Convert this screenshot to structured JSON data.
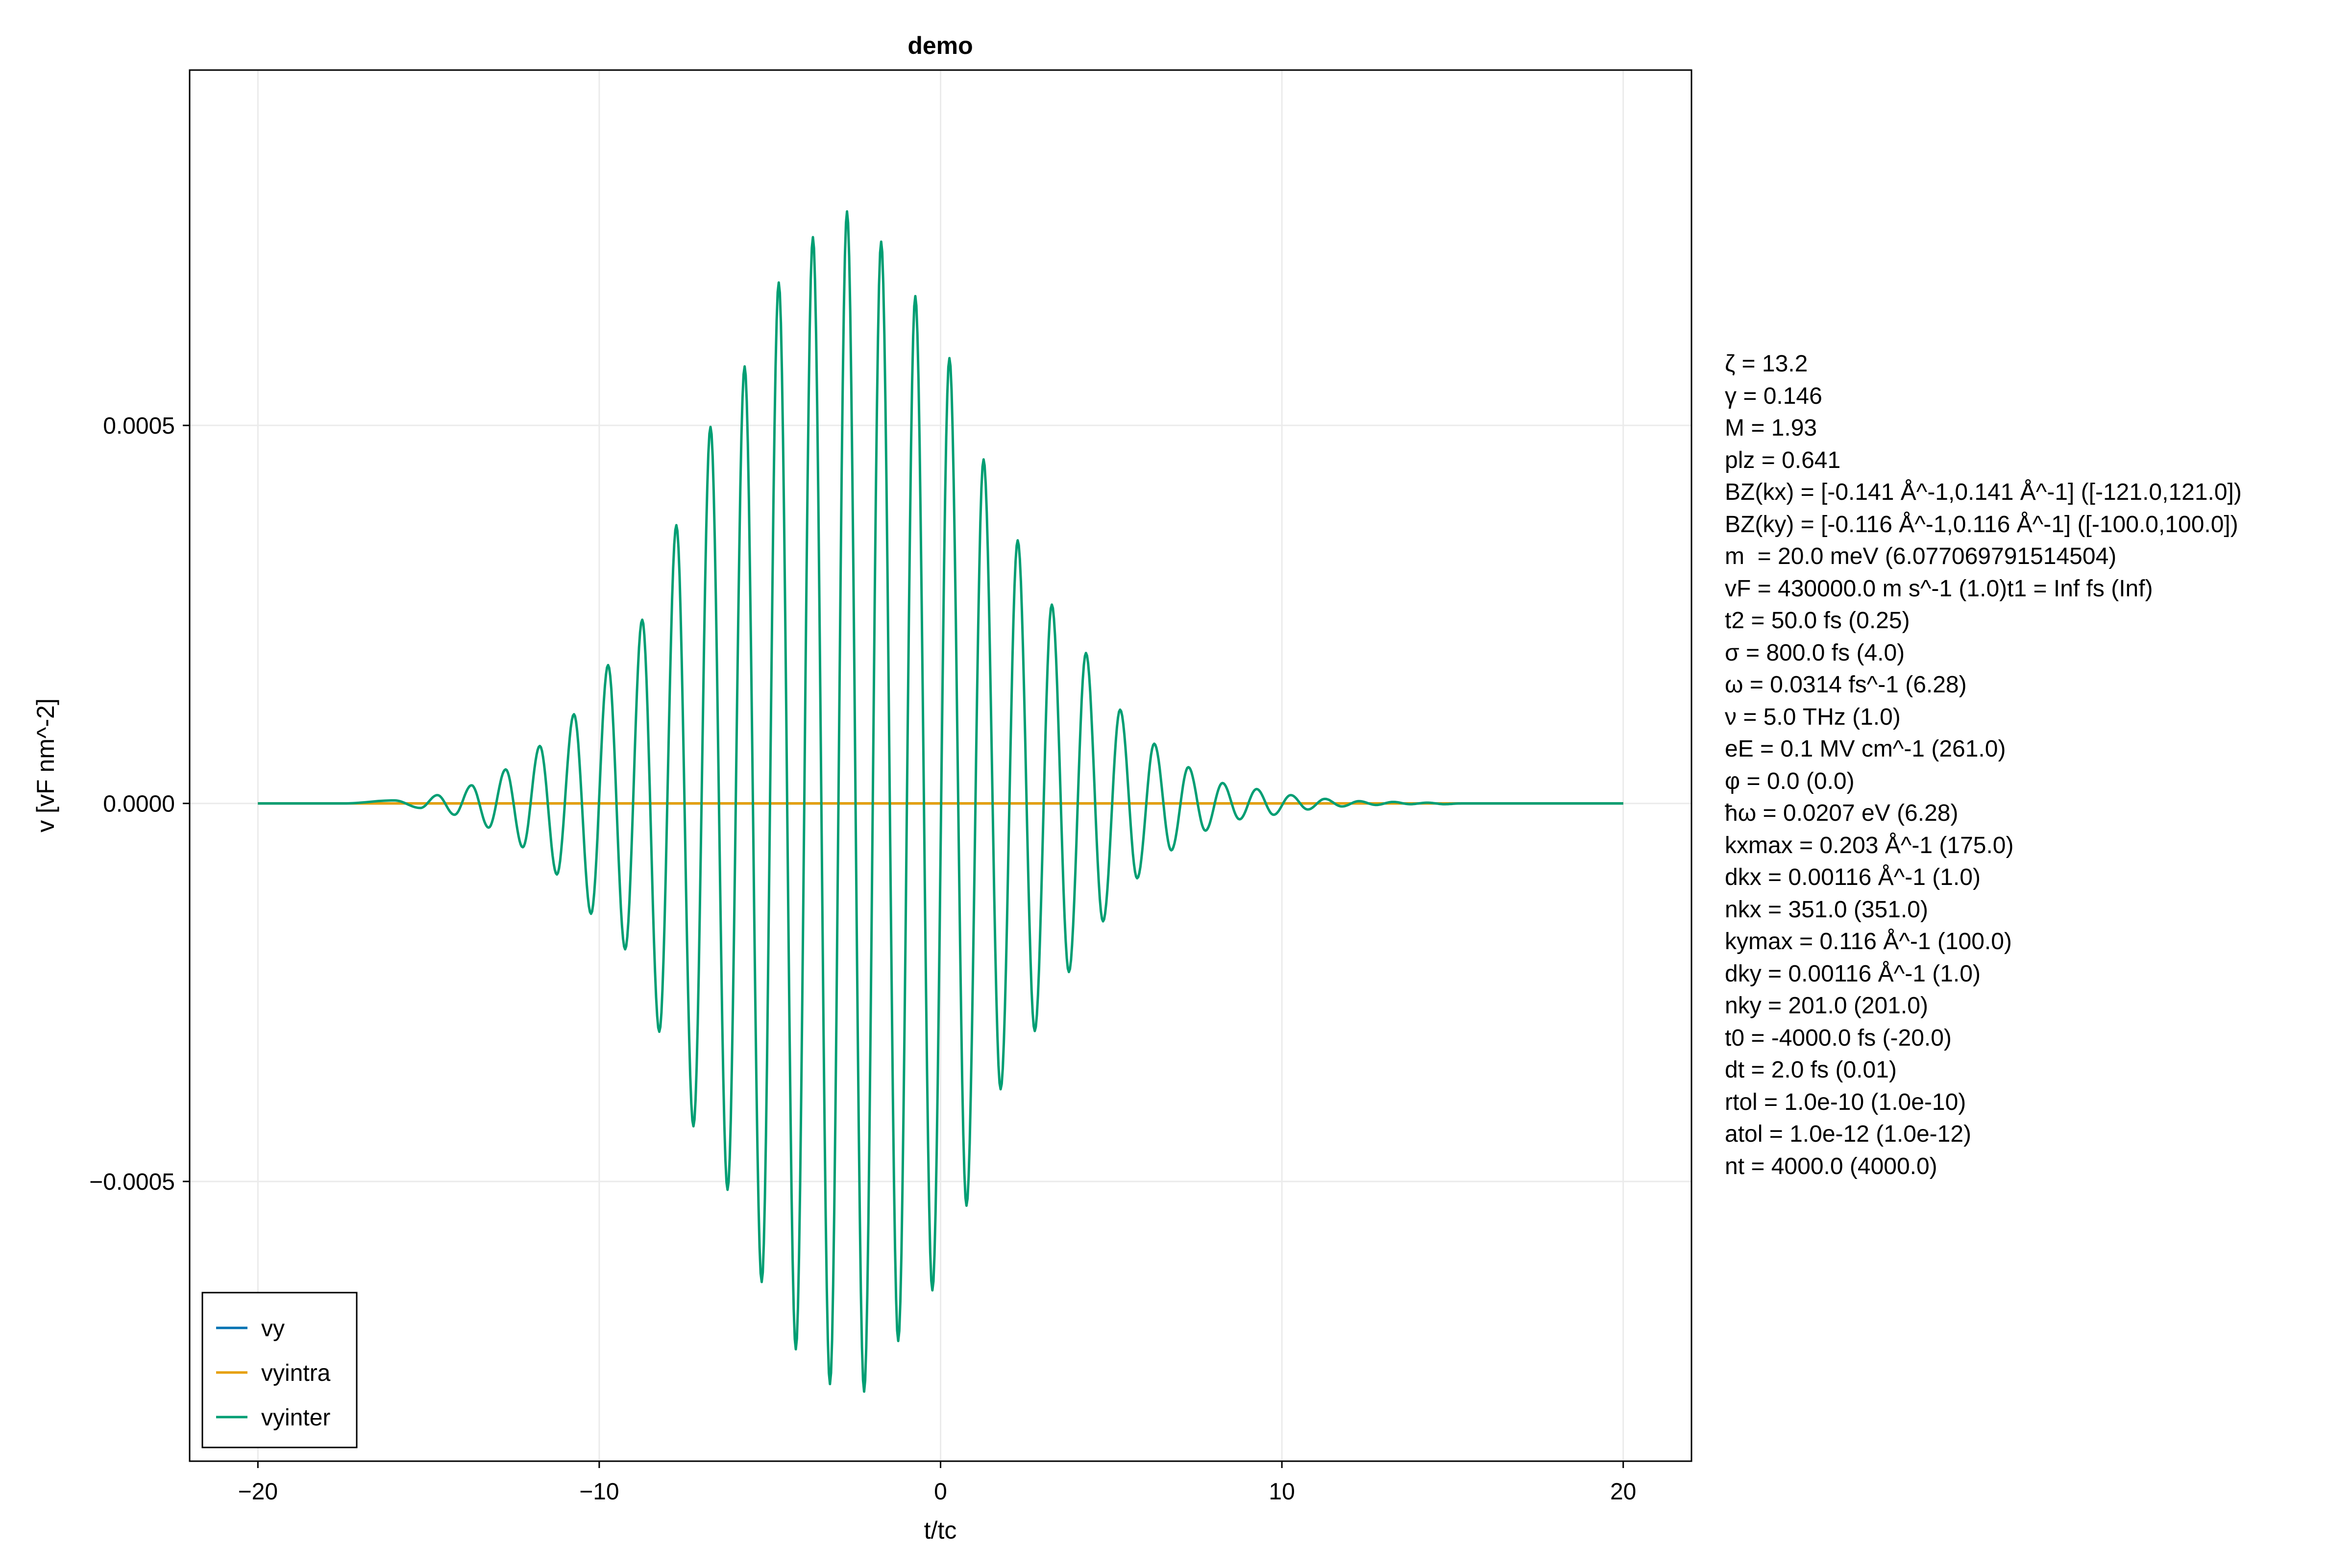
{
  "chart_data": {
    "type": "line",
    "title": "demo",
    "xlabel": "t/tc",
    "ylabel": "v [vF nm^-2]",
    "xlim": [
      -22,
      22
    ],
    "ylim": [
      -0.00087,
      0.00097
    ],
    "xticks": [
      -20,
      -10,
      0,
      10,
      20
    ],
    "xtick_labels": [
      "−20",
      "−10",
      "0",
      "10",
      "20"
    ],
    "yticks": [
      -0.0005,
      0.0,
      0.0005
    ],
    "ytick_labels": [
      "−0.0005",
      "0.0000",
      "0.0005"
    ],
    "grid": true,
    "legend_position": "bottom-left",
    "series": [
      {
        "name": "vy",
        "color": "#0072b2",
        "style": "line",
        "x": [
          -20,
          -10,
          0,
          10,
          20
        ],
        "y": [
          0,
          0,
          0,
          0,
          0
        ]
      },
      {
        "name": "vyintra",
        "color": "#e69f00",
        "style": "line",
        "x": [
          -20,
          -10,
          0,
          10,
          20
        ],
        "y": [
          0,
          0,
          0,
          0,
          0
        ]
      },
      {
        "name": "vyinter",
        "color": "#009e73",
        "style": "line",
        "x": [
          -20.0,
          -17.5,
          -16.0,
          -15.24,
          -14.74,
          -14.24,
          -13.74,
          -13.24,
          -12.74,
          -12.24,
          -11.74,
          -11.24,
          -10.74,
          -10.24,
          -9.74,
          -9.24,
          -8.74,
          -8.24,
          -7.74,
          -7.24,
          -6.74,
          -6.24,
          -5.74,
          -5.24,
          -4.74,
          -4.24,
          -3.74,
          -3.24,
          -2.74,
          -2.24,
          -1.74,
          -1.24,
          -0.74,
          -0.24,
          0.26,
          0.76,
          1.26,
          1.76,
          2.26,
          2.76,
          3.26,
          3.76,
          4.26,
          4.76,
          5.26,
          5.76,
          6.26,
          6.76,
          7.26,
          7.76,
          8.26,
          8.76,
          9.26,
          9.76,
          10.26,
          10.76,
          11.26,
          11.76,
          12.26,
          12.76,
          13.26,
          13.76,
          14.26,
          14.76,
          15.26,
          16.5,
          18.0,
          20.0
        ],
        "y": [
          0.0,
          0.0,
          4e-06,
          -6e-06,
          1.1e-05,
          -1.5e-05,
          2.4e-05,
          -3.2e-05,
          4.5e-05,
          -5.8e-05,
          7.6e-05,
          -9.4e-05,
          0.000118,
          -0.000146,
          0.000183,
          -0.000193,
          0.000243,
          -0.000302,
          0.000368,
          -0.000427,
          0.000498,
          -0.000511,
          0.000578,
          -0.000633,
          0.000689,
          -0.000722,
          0.000749,
          -0.000768,
          0.000783,
          -0.000778,
          0.000743,
          -0.000711,
          0.000671,
          -0.000644,
          0.000589,
          -0.000532,
          0.000455,
          -0.000378,
          0.000348,
          -0.000301,
          0.000263,
          -0.000223,
          0.000199,
          -0.000156,
          0.000124,
          -9.9e-05,
          7.9e-05,
          -6.2e-05,
          4.8e-05,
          -3.6e-05,
          2.7e-05,
          -2.1e-05,
          1.9e-05,
          -1.5e-05,
          1.1e-05,
          -8e-06,
          6e-06,
          -4e-06,
          3e-06,
          -2e-06,
          2e-06,
          -1e-06,
          1e-06,
          -1e-06,
          0.0,
          0.0,
          0.0,
          0.0
        ]
      }
    ]
  },
  "params": [
    "ζ = 13.2",
    "γ = 0.146",
    "M = 1.93",
    "plz = 0.641",
    "BZ(kx) = [-0.141 Å^-1,0.141 Å^-1] ([-121.0,121.0])",
    "BZ(ky) = [-0.116 Å^-1,0.116 Å^-1] ([-100.0,100.0])",
    "m  = 20.0 meV (6.077069791514504)",
    "vF = 430000.0 m s^-1 (1.0)t1 = Inf fs (Inf)",
    "t2 = 50.0 fs (0.25)",
    "σ = 800.0 fs (4.0)",
    "ω = 0.0314 fs^-1 (6.28)",
    "ν = 5.0 THz (1.0)",
    "eE = 0.1 MV cm^-1 (261.0)",
    "φ = 0.0 (0.0)",
    "ħω = 0.0207 eV (6.28)",
    "kxmax = 0.203 Å^-1 (175.0)",
    "dkx = 0.00116 Å^-1 (1.0)",
    "nkx = 351.0 (351.0)",
    "kymax = 0.116 Å^-1 (100.0)",
    "dky = 0.00116 Å^-1 (1.0)",
    "nky = 201.0 (201.0)",
    "t0 = -4000.0 fs (-20.0)",
    "dt = 2.0 fs (0.01)",
    "rtol = 1.0e-10 (1.0e-10)",
    "atol = 1.0e-12 (1.0e-12)",
    "nt = 4000.0 (4000.0)"
  ]
}
